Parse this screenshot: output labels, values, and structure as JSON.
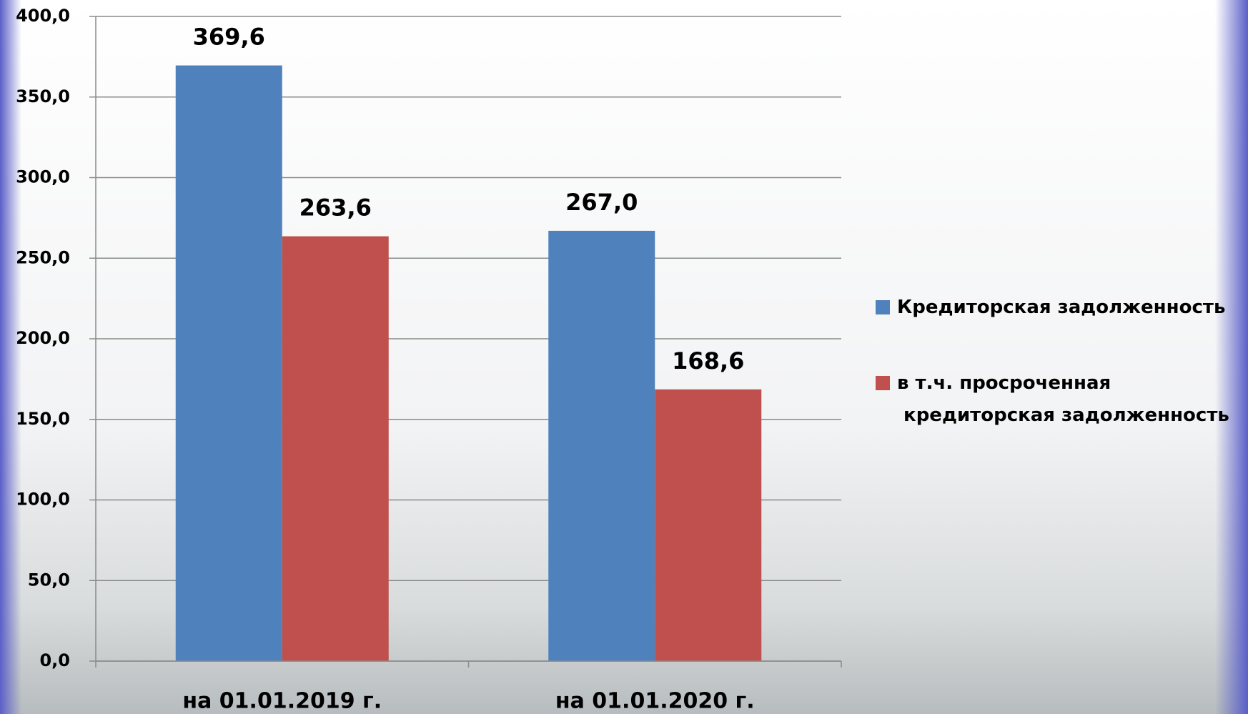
{
  "chart_data": {
    "type": "bar",
    "categories": [
      "на 01.01.2019 г.",
      "на 01.01.2020 г."
    ],
    "series": [
      {
        "name": "Кредиторская задолженность",
        "color": "#4f81bd",
        "values": [
          369.6,
          267.0
        ],
        "value_labels": [
          "369,6",
          "267,0"
        ]
      },
      {
        "name": "в т.ч. просроченная кредиторская задолженность",
        "color": "#c0504d",
        "values": [
          263.6,
          168.6
        ],
        "value_labels": [
          "263,6",
          "168,6"
        ]
      }
    ],
    "ylim": [
      0,
      400
    ],
    "yticks": [
      {
        "value": 0,
        "label": "0,0"
      },
      {
        "value": 50,
        "label": "50,0"
      },
      {
        "value": 100,
        "label": "100,0"
      },
      {
        "value": 150,
        "label": "150,0"
      },
      {
        "value": 200,
        "label": "200,0"
      },
      {
        "value": 250,
        "label": "250,0"
      },
      {
        "value": 300,
        "label": "300,0"
      },
      {
        "value": 350,
        "label": "350,0"
      },
      {
        "value": 400,
        "label": "400,0"
      }
    ],
    "grid": true,
    "legend": "right"
  }
}
